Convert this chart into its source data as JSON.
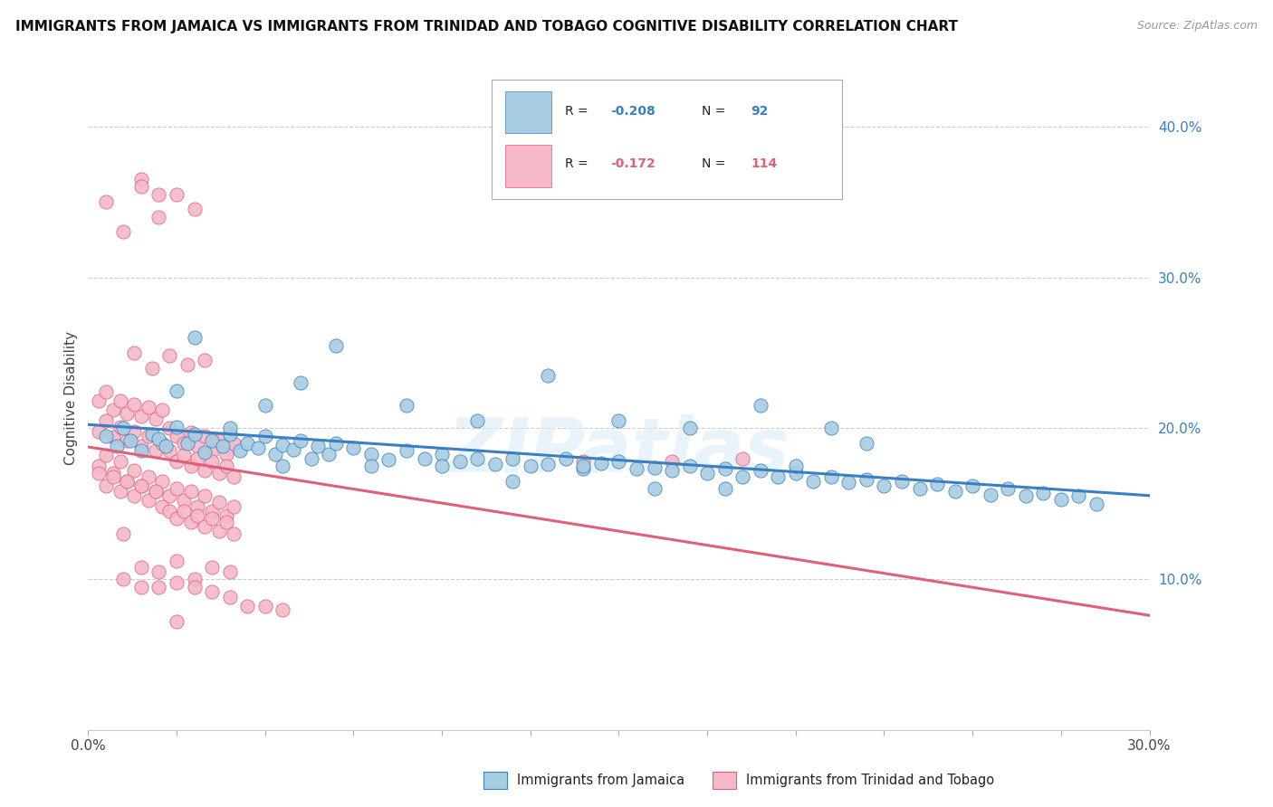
{
  "title": "IMMIGRANTS FROM JAMAICA VS IMMIGRANTS FROM TRINIDAD AND TOBAGO COGNITIVE DISABILITY CORRELATION CHART",
  "source": "Source: ZipAtlas.com",
  "ylabel": "Cognitive Disability",
  "xlim": [
    0.0,
    0.3
  ],
  "ylim": [
    0.0,
    0.44
  ],
  "yticks": [
    0.1,
    0.2,
    0.3,
    0.4
  ],
  "xticks": [
    0.0,
    0.025,
    0.05,
    0.075,
    0.1,
    0.125,
    0.15,
    0.175,
    0.2,
    0.225,
    0.25,
    0.275,
    0.3
  ],
  "blue_R": -0.208,
  "blue_N": 92,
  "pink_R": -0.172,
  "pink_N": 114,
  "blue_color": "#a8cce0",
  "pink_color": "#f4b8c8",
  "blue_line_color": "#3a7fc1",
  "pink_line_color": "#e0607a",
  "legend_label_blue": "Immigrants from Jamaica",
  "legend_label_pink": "Immigrants from Trinidad and Tobago",
  "watermark": "ZIPatlas",
  "blue_scatter_x": [
    0.005,
    0.008,
    0.01,
    0.012,
    0.015,
    0.018,
    0.02,
    0.022,
    0.025,
    0.028,
    0.03,
    0.033,
    0.035,
    0.038,
    0.04,
    0.043,
    0.045,
    0.048,
    0.05,
    0.053,
    0.055,
    0.058,
    0.06,
    0.063,
    0.065,
    0.068,
    0.07,
    0.075,
    0.08,
    0.085,
    0.09,
    0.095,
    0.1,
    0.105,
    0.11,
    0.115,
    0.12,
    0.125,
    0.13,
    0.135,
    0.14,
    0.145,
    0.15,
    0.155,
    0.16,
    0.165,
    0.17,
    0.175,
    0.18,
    0.185,
    0.19,
    0.195,
    0.2,
    0.205,
    0.21,
    0.215,
    0.22,
    0.225,
    0.23,
    0.235,
    0.24,
    0.245,
    0.25,
    0.255,
    0.26,
    0.265,
    0.27,
    0.275,
    0.28,
    0.285,
    0.03,
    0.05,
    0.07,
    0.09,
    0.11,
    0.13,
    0.15,
    0.17,
    0.19,
    0.21,
    0.025,
    0.04,
    0.06,
    0.08,
    0.1,
    0.12,
    0.14,
    0.16,
    0.18,
    0.055,
    0.2,
    0.22
  ],
  "blue_scatter_y": [
    0.195,
    0.188,
    0.2,
    0.192,
    0.185,
    0.196,
    0.193,
    0.188,
    0.201,
    0.19,
    0.196,
    0.184,
    0.192,
    0.188,
    0.196,
    0.185,
    0.19,
    0.187,
    0.195,
    0.183,
    0.189,
    0.186,
    0.192,
    0.18,
    0.188,
    0.183,
    0.19,
    0.187,
    0.183,
    0.179,
    0.185,
    0.18,
    0.183,
    0.178,
    0.18,
    0.176,
    0.18,
    0.175,
    0.176,
    0.18,
    0.173,
    0.177,
    0.178,
    0.173,
    0.174,
    0.172,
    0.175,
    0.17,
    0.173,
    0.168,
    0.172,
    0.168,
    0.17,
    0.165,
    0.168,
    0.164,
    0.166,
    0.162,
    0.165,
    0.16,
    0.163,
    0.158,
    0.162,
    0.156,
    0.16,
    0.155,
    0.157,
    0.153,
    0.155,
    0.15,
    0.26,
    0.215,
    0.255,
    0.215,
    0.205,
    0.235,
    0.205,
    0.2,
    0.215,
    0.2,
    0.225,
    0.2,
    0.23,
    0.175,
    0.175,
    0.165,
    0.175,
    0.16,
    0.16,
    0.175,
    0.175,
    0.19
  ],
  "pink_scatter_x": [
    0.003,
    0.005,
    0.007,
    0.009,
    0.011,
    0.013,
    0.015,
    0.017,
    0.019,
    0.021,
    0.023,
    0.025,
    0.027,
    0.029,
    0.031,
    0.033,
    0.035,
    0.037,
    0.039,
    0.041,
    0.003,
    0.005,
    0.007,
    0.009,
    0.011,
    0.013,
    0.015,
    0.017,
    0.019,
    0.021,
    0.023,
    0.025,
    0.027,
    0.029,
    0.031,
    0.033,
    0.035,
    0.037,
    0.039,
    0.041,
    0.003,
    0.005,
    0.007,
    0.009,
    0.011,
    0.013,
    0.015,
    0.017,
    0.019,
    0.021,
    0.023,
    0.025,
    0.027,
    0.029,
    0.031,
    0.033,
    0.035,
    0.037,
    0.039,
    0.041,
    0.003,
    0.005,
    0.007,
    0.009,
    0.011,
    0.013,
    0.015,
    0.017,
    0.019,
    0.021,
    0.023,
    0.025,
    0.027,
    0.029,
    0.031,
    0.033,
    0.035,
    0.037,
    0.039,
    0.041,
    0.013,
    0.018,
    0.023,
    0.028,
    0.033,
    0.015,
    0.02,
    0.14,
    0.165,
    0.185,
    0.01,
    0.015,
    0.02,
    0.025,
    0.03,
    0.035,
    0.04,
    0.045,
    0.05,
    0.055,
    0.025,
    0.005,
    0.01,
    0.015,
    0.02,
    0.025,
    0.03,
    0.01,
    0.015,
    0.02,
    0.025,
    0.03,
    0.035,
    0.04
  ],
  "pink_scatter_y": [
    0.218,
    0.224,
    0.212,
    0.218,
    0.21,
    0.216,
    0.208,
    0.214,
    0.206,
    0.212,
    0.2,
    0.195,
    0.19,
    0.197,
    0.188,
    0.195,
    0.185,
    0.192,
    0.183,
    0.19,
    0.175,
    0.182,
    0.17,
    0.178,
    0.165,
    0.172,
    0.162,
    0.168,
    0.158,
    0.165,
    0.155,
    0.16,
    0.152,
    0.158,
    0.148,
    0.155,
    0.145,
    0.151,
    0.142,
    0.148,
    0.198,
    0.205,
    0.194,
    0.201,
    0.192,
    0.198,
    0.188,
    0.195,
    0.185,
    0.19,
    0.185,
    0.178,
    0.182,
    0.175,
    0.18,
    0.172,
    0.178,
    0.17,
    0.175,
    0.168,
    0.17,
    0.162,
    0.168,
    0.158,
    0.165,
    0.155,
    0.162,
    0.152,
    0.158,
    0.148,
    0.145,
    0.14,
    0.145,
    0.138,
    0.142,
    0.135,
    0.14,
    0.132,
    0.138,
    0.13,
    0.25,
    0.24,
    0.248,
    0.242,
    0.245,
    0.365,
    0.355,
    0.178,
    0.178,
    0.18,
    0.13,
    0.095,
    0.095,
    0.098,
    0.1,
    0.092,
    0.088,
    0.082,
    0.082,
    0.08,
    0.072,
    0.35,
    0.33,
    0.36,
    0.34,
    0.355,
    0.345,
    0.1,
    0.108,
    0.105,
    0.112,
    0.095,
    0.108,
    0.105
  ]
}
